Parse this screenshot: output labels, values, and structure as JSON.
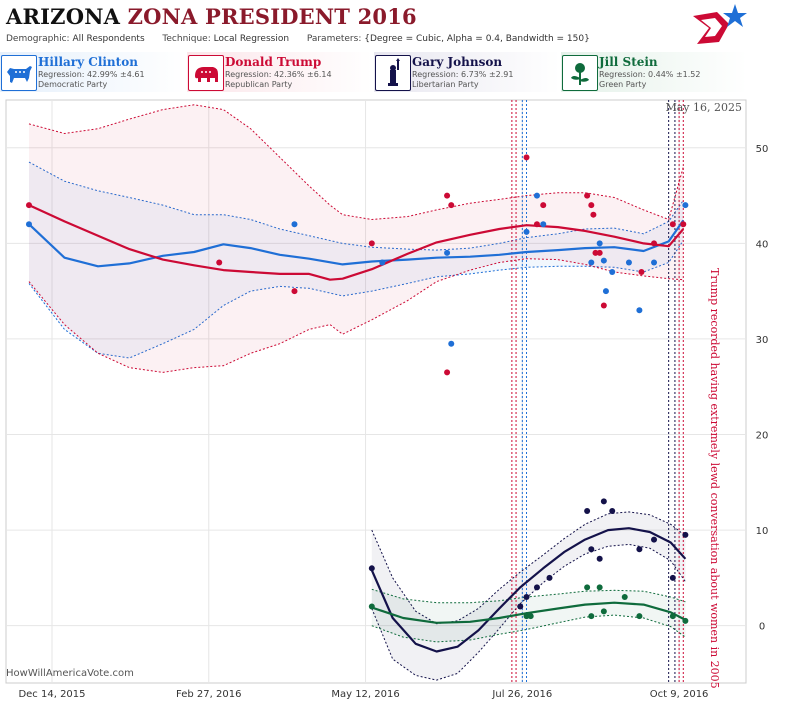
{
  "header": {
    "state": "ARIZONA",
    "race": "ZONA PRESIDENT 2016",
    "demographic_label": "Demographic:",
    "demographic": "All Respondents",
    "technique_label": "Technique:",
    "technique": "Local Regression",
    "parameters_label": "Parameters:",
    "parameters": "{Degree = Cubic, Alpha = 0.4, Bandwidth = 150}"
  },
  "candidates": [
    {
      "name": "Hillary Clinton",
      "regression": "Regression: 42.99% ±4.61",
      "party": "Democratic Party",
      "color": "#1f6fd6",
      "icon": "donkey-icon"
    },
    {
      "name": "Donald Trump",
      "regression": "Regression: 42.36% ±6.14",
      "party": "Republican Party",
      "color": "#cc0a35",
      "icon": "elephant-icon"
    },
    {
      "name": "Gary Johnson",
      "regression": "Regression: 6.73% ±2.91",
      "party": "Libertarian Party",
      "color": "#14124a",
      "icon": "liberty-icon"
    },
    {
      "name": "Jill Stein",
      "regression": "Regression: 0.44% ±1.52",
      "party": "Green Party",
      "color": "#0f6b3c",
      "icon": "rose-icon"
    }
  ],
  "footer": "HowWillAmericaVote.com",
  "chart_data": {
    "type": "line",
    "date_label": "May 16, 2025",
    "annotation": "Trump recorded having extremely lewd conversation about women in 2005",
    "x_ticks": [
      "Dec 14, 2015",
      "Feb 27, 2016",
      "May 12, 2016",
      "Jul 26, 2016",
      "Oct 9, 2016"
    ],
    "y_ticks": [
      0,
      10,
      20,
      30,
      40,
      50
    ],
    "ylim": [
      -6,
      55
    ],
    "xlim": [
      "2015-11-22",
      "2016-11-10"
    ],
    "grid": true,
    "event_dates": [
      "2016-07-21",
      "2016-07-23",
      "2016-07-26",
      "2016-07-28",
      "2016-10-04",
      "2016-10-07",
      "2016-10-09",
      "2016-10-11"
    ],
    "event_colors": [
      "#cc0a35",
      "#cc0a35",
      "#1f6fd6",
      "#1f6fd6",
      "#14124a",
      "#14124a",
      "#cc0a35",
      "#cc0a35"
    ],
    "series": [
      {
        "name": "Hillary Clinton",
        "color": "#1f6fd6",
        "fill": "#1f6fd6",
        "line_x": [
          "2015-12-03",
          "2015-12-20",
          "2016-01-05",
          "2016-01-20",
          "2016-02-05",
          "2016-02-20",
          "2016-03-05",
          "2016-03-18",
          "2016-04-01",
          "2016-04-15",
          "2016-05-01",
          "2016-05-15",
          "2016-06-01",
          "2016-06-15",
          "2016-07-01",
          "2016-07-15",
          "2016-07-28",
          "2016-08-12",
          "2016-08-25",
          "2016-09-08",
          "2016-09-22",
          "2016-10-04",
          "2016-10-11"
        ],
        "line_y": [
          42.0,
          38.5,
          37.6,
          37.9,
          38.7,
          39.1,
          39.9,
          39.5,
          38.8,
          38.4,
          37.8,
          38.1,
          38.3,
          38.5,
          38.6,
          38.8,
          39.1,
          39.3,
          39.5,
          39.6,
          39.2,
          40.2,
          42.4
        ],
        "upper": [
          48.5,
          46.5,
          45.5,
          44.8,
          44.0,
          43.0,
          43.0,
          42.5,
          41.5,
          40.8,
          40.0,
          39.6,
          39.4,
          39.3,
          39.5,
          40.0,
          40.6,
          41.0,
          41.5,
          41.6,
          41.0,
          42.3,
          44.5
        ],
        "lower": [
          35.8,
          31.0,
          28.5,
          28.0,
          29.5,
          31.0,
          33.5,
          35.0,
          35.5,
          35.3,
          34.5,
          35.0,
          35.8,
          36.5,
          36.8,
          37.2,
          37.5,
          37.6,
          37.6,
          37.5,
          37.0,
          38.0,
          40.3
        ],
        "points_x": [
          "2015-12-03",
          "2016-04-08",
          "2016-05-20",
          "2016-06-20",
          "2016-06-22",
          "2016-07-28",
          "2016-08-02",
          "2016-08-05",
          "2016-08-28",
          "2016-09-01",
          "2016-09-03",
          "2016-09-04",
          "2016-09-07",
          "2016-09-15",
          "2016-09-20",
          "2016-09-27",
          "2016-10-12"
        ],
        "points_y": [
          42,
          42,
          38,
          39,
          29.5,
          41.2,
          45,
          42,
          38,
          40,
          38.2,
          35,
          37,
          38,
          33,
          38,
          44
        ]
      },
      {
        "name": "Donald Trump",
        "color": "#cc0a35",
        "fill": "#cc0a35",
        "line_x": [
          "2015-12-03",
          "2015-12-20",
          "2016-01-05",
          "2016-01-20",
          "2016-02-05",
          "2016-02-20",
          "2016-03-05",
          "2016-03-18",
          "2016-04-01",
          "2016-04-15",
          "2016-04-25",
          "2016-05-01",
          "2016-05-15",
          "2016-06-01",
          "2016-06-15",
          "2016-07-01",
          "2016-07-15",
          "2016-07-28",
          "2016-08-12",
          "2016-08-25",
          "2016-09-08",
          "2016-09-22",
          "2016-10-04",
          "2016-10-11"
        ],
        "line_y": [
          44.0,
          42.3,
          40.8,
          39.4,
          38.3,
          37.7,
          37.2,
          37.0,
          36.8,
          36.8,
          36.2,
          36.3,
          37.3,
          38.9,
          40.1,
          40.9,
          41.5,
          41.9,
          41.7,
          41.3,
          40.7,
          40.0,
          39.7,
          41.5
        ],
        "upper": [
          52.5,
          51.5,
          52.0,
          53.0,
          54.0,
          54.5,
          54.0,
          52.0,
          49.0,
          46.0,
          44.0,
          43.0,
          42.5,
          42.8,
          43.5,
          44.2,
          44.6,
          45.0,
          45.3,
          45.3,
          44.8,
          43.5,
          42.5,
          48.0
        ],
        "lower": [
          36.0,
          31.5,
          28.5,
          27.0,
          26.5,
          27.0,
          27.2,
          28.5,
          29.5,
          31.0,
          31.5,
          30.5,
          32.0,
          34.0,
          36.0,
          37.2,
          38.0,
          38.4,
          38.3,
          37.8,
          37.0,
          36.6,
          36.3,
          36.2
        ],
        "points_x": [
          "2015-12-03",
          "2016-03-03",
          "2016-04-08",
          "2016-05-15",
          "2016-06-20",
          "2016-06-22",
          "2016-06-20",
          "2016-07-28",
          "2016-08-02",
          "2016-08-05",
          "2016-08-26",
          "2016-08-28",
          "2016-08-29",
          "2016-08-30",
          "2016-09-01",
          "2016-09-03",
          "2016-09-21",
          "2016-09-27",
          "2016-10-06",
          "2016-10-11"
        ],
        "points_y": [
          44,
          38,
          35,
          40,
          45,
          44,
          26.5,
          49,
          42,
          44,
          45,
          44,
          43,
          39,
          39,
          33.5,
          37,
          40,
          42,
          42
        ]
      },
      {
        "name": "Gary Johnson",
        "color": "#14124a",
        "fill": "#14124a",
        "line_x": [
          "2016-05-15",
          "2016-05-25",
          "2016-06-05",
          "2016-06-15",
          "2016-06-25",
          "2016-07-05",
          "2016-07-15",
          "2016-07-25",
          "2016-08-05",
          "2016-08-15",
          "2016-08-25",
          "2016-09-05",
          "2016-09-15",
          "2016-09-25",
          "2016-10-05",
          "2016-10-12"
        ],
        "line_y": [
          5.8,
          0.8,
          -1.9,
          -2.7,
          -2.2,
          -0.5,
          1.8,
          4.0,
          6.0,
          7.7,
          9.0,
          10.0,
          10.2,
          9.8,
          8.7,
          7.0
        ],
        "upper": [
          10.0,
          5.0,
          1.5,
          0.2,
          0.5,
          1.8,
          3.8,
          5.6,
          7.4,
          9.1,
          10.6,
          11.7,
          11.9,
          11.6,
          10.6,
          9.4
        ],
        "lower": [
          1.8,
          -3.5,
          -5.2,
          -5.7,
          -5.0,
          -2.8,
          -0.3,
          2.3,
          4.5,
          6.2,
          7.5,
          8.3,
          8.5,
          8.1,
          6.8,
          4.6
        ],
        "points_x": [
          "2016-05-15",
          "2016-07-25",
          "2016-07-28",
          "2016-08-02",
          "2016-08-08",
          "2016-08-26",
          "2016-08-28",
          "2016-09-01",
          "2016-09-03",
          "2016-09-07",
          "2016-09-20",
          "2016-09-27",
          "2016-10-06",
          "2016-10-12"
        ],
        "points_y": [
          6,
          2,
          3,
          4,
          5,
          12,
          8,
          7,
          13,
          12,
          8,
          9,
          5,
          9.5
        ]
      },
      {
        "name": "Jill Stein",
        "color": "#0f6b3c",
        "fill": "#0f6b3c",
        "line_x": [
          "2016-05-15",
          "2016-05-30",
          "2016-06-15",
          "2016-07-01",
          "2016-07-15",
          "2016-07-28",
          "2016-08-12",
          "2016-08-25",
          "2016-09-08",
          "2016-09-22",
          "2016-10-05",
          "2016-10-12"
        ],
        "line_y": [
          1.9,
          0.8,
          0.3,
          0.4,
          0.8,
          1.3,
          1.8,
          2.2,
          2.4,
          2.2,
          1.4,
          0.6
        ],
        "upper": [
          3.8,
          2.8,
          2.4,
          2.4,
          2.6,
          3.0,
          3.3,
          3.6,
          3.7,
          3.6,
          3.0,
          2.5
        ],
        "lower": [
          0.0,
          -1.2,
          -1.7,
          -1.5,
          -0.9,
          -0.4,
          0.3,
          0.9,
          1.1,
          0.8,
          -0.1,
          -1.2
        ],
        "points_x": [
          "2016-05-15",
          "2016-07-28",
          "2016-07-30",
          "2016-08-26",
          "2016-08-28",
          "2016-09-01",
          "2016-09-03",
          "2016-09-13",
          "2016-09-20",
          "2016-10-06",
          "2016-10-12"
        ],
        "points_y": [
          2,
          1,
          1,
          4,
          1,
          4,
          1.5,
          3,
          1,
          1,
          0.5
        ]
      }
    ]
  }
}
